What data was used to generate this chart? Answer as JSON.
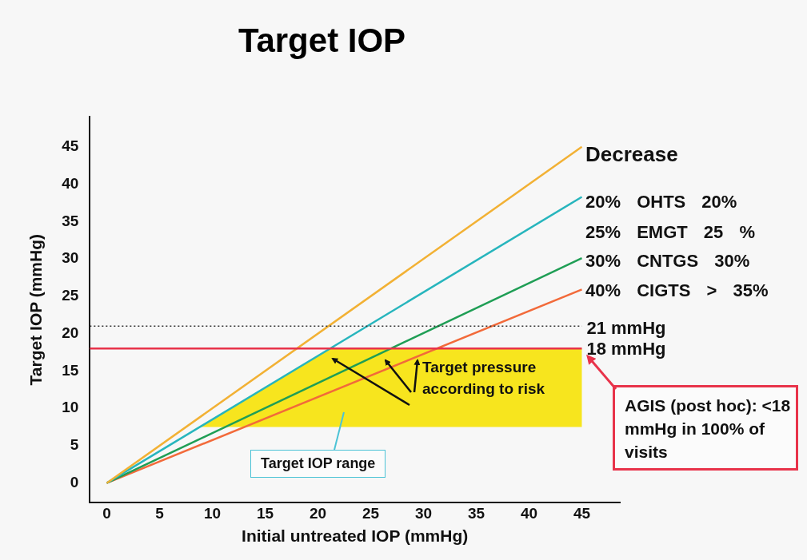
{
  "chart_data": {
    "type": "line",
    "title": "Target IOP",
    "xlabel": "Initial untreated IOP (mmHg)",
    "ylabel": "Target IOP (mmHg)",
    "x": [
      0,
      45
    ],
    "series": [
      {
        "color": "#f2b134",
        "values": [
          0,
          45
        ]
      },
      {
        "color": "#27b5bd",
        "values": [
          0,
          38.3
        ]
      },
      {
        "color": "#1f9e55",
        "values": [
          0,
          30.1
        ]
      },
      {
        "color": "#f26a3a",
        "values": [
          0,
          25.9
        ]
      }
    ],
    "xlim": [
      -1.6,
      48.6
    ],
    "ylim": [
      -2.6,
      49
    ],
    "xticks": [
      0,
      5,
      10,
      15,
      20,
      25,
      30,
      35,
      40,
      45
    ],
    "yticks": [
      0,
      5,
      10,
      15,
      20,
      25,
      30,
      35,
      40,
      45
    ],
    "ref_lines": [
      {
        "axis": "y",
        "value": 21,
        "label": "21 mmHg",
        "color": "#333333",
        "line_style": "dotted"
      },
      {
        "axis": "y",
        "value": 18,
        "label": "18 mmHg",
        "color": "#e8334a",
        "line_style": "solid"
      }
    ],
    "bands": [
      {
        "axis": "y",
        "from": 7.5,
        "to": 18,
        "label": "Target IOP range",
        "color": "#f7e51e"
      }
    ],
    "annotations": [
      "Decrease",
      "20% OHTS 20%",
      "25% EMGT 25 %",
      "30% CNTGS 30%",
      "40% CIGTS > 35%",
      "Target pressure according to risk",
      "AGIS (post hoc): <18 mmHg in 100% of visits"
    ],
    "marker": "none",
    "line_style": "solid"
  }
}
